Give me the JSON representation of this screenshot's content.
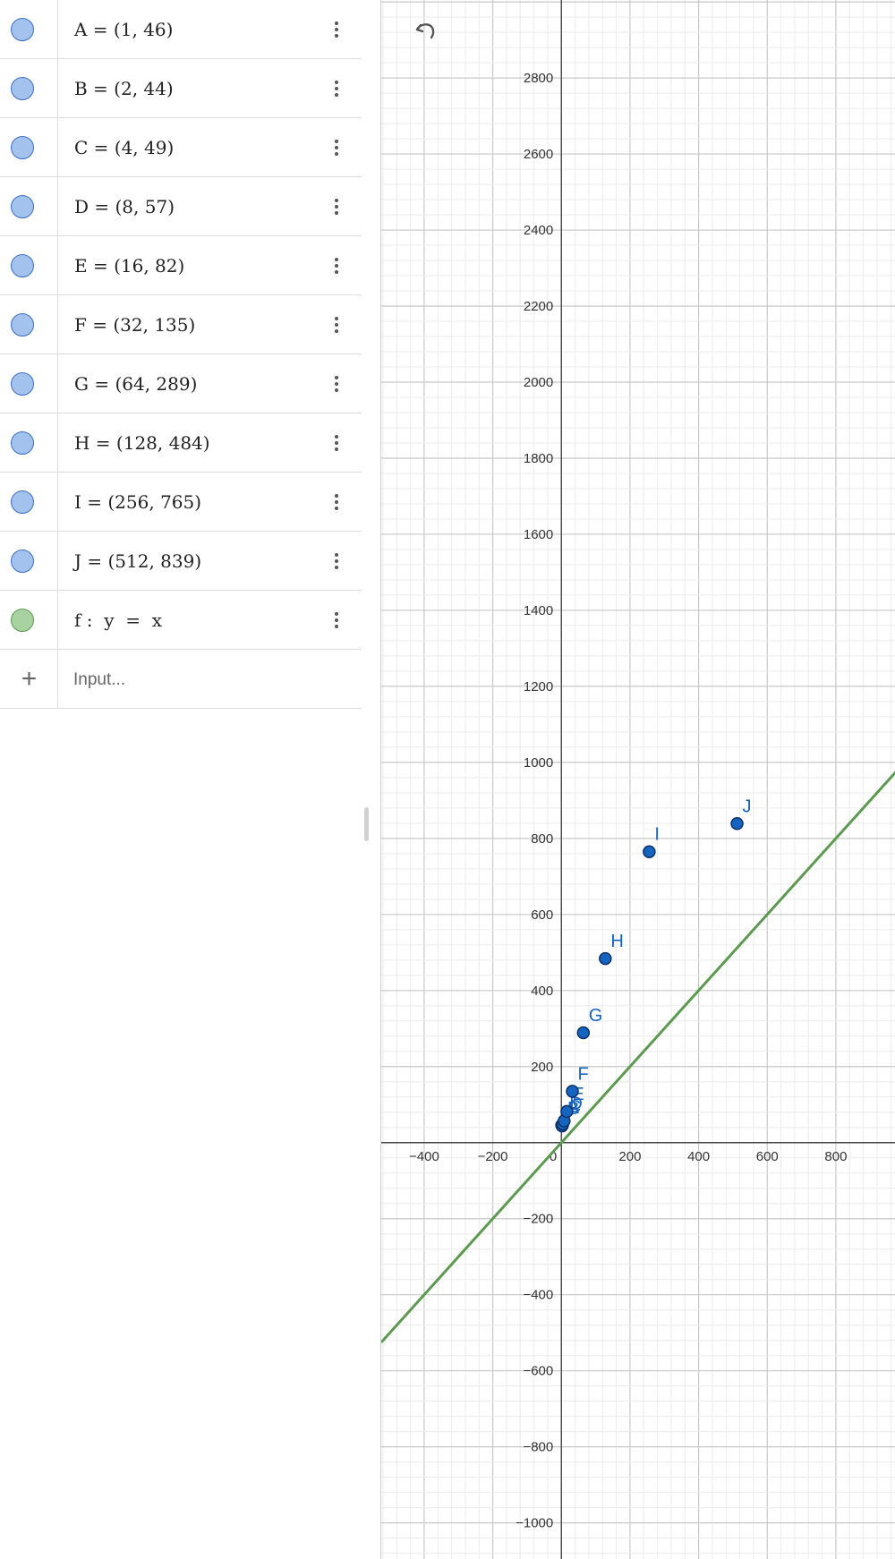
{
  "algebra_view": {
    "rows": [
      {
        "text": "A = (1, 46)",
        "type": "point",
        "color": "#a4c2ee"
      },
      {
        "text": "B = (2, 44)",
        "type": "point",
        "color": "#a4c2ee"
      },
      {
        "text": "C = (4, 49)",
        "type": "point",
        "color": "#a4c2ee"
      },
      {
        "text": "D = (8, 57)",
        "type": "point",
        "color": "#a4c2ee"
      },
      {
        "text": "E = (16, 82)",
        "type": "point",
        "color": "#a4c2ee"
      },
      {
        "text": "F = (32, 135)",
        "type": "point",
        "color": "#a4c2ee"
      },
      {
        "text": "G = (64, 289)",
        "type": "point",
        "color": "#a4c2ee"
      },
      {
        "text": "H = (128, 484)",
        "type": "point",
        "color": "#a4c2ee"
      },
      {
        "text": "I = (256, 765)",
        "type": "point",
        "color": "#a4c2ee"
      },
      {
        "text": "J = (512, 839)",
        "type": "point",
        "color": "#a4c2ee"
      },
      {
        "text": "f :  y  =  x",
        "type": "function",
        "color": "#a8d2a0"
      }
    ],
    "input_placeholder": "Input...",
    "add_icon": "plus-icon",
    "row_menu_icon": "more-vertical-icon"
  },
  "graphics_view": {
    "undo_icon": "undo-icon",
    "point_color": "#1565c0",
    "line_color": "#5b9a50",
    "chart_data": {
      "type": "scatter",
      "x_ticks": [
        "−400",
        "−200",
        "0",
        "200",
        "400",
        "600",
        "800"
      ],
      "y_ticks": [
        "2800",
        "2600",
        "2400",
        "2200",
        "2000",
        "1800",
        "1600",
        "1400",
        "1200",
        "1000",
        "800",
        "600",
        "400",
        "200",
        "−200",
        "−400",
        "−600",
        "−800",
        "−1000"
      ],
      "points": [
        {
          "name": "A",
          "x": 1,
          "y": 46
        },
        {
          "name": "B",
          "x": 2,
          "y": 44
        },
        {
          "name": "C",
          "x": 4,
          "y": 49
        },
        {
          "name": "D",
          "x": 8,
          "y": 57
        },
        {
          "name": "E",
          "x": 16,
          "y": 82
        },
        {
          "name": "F",
          "x": 32,
          "y": 135
        },
        {
          "name": "G",
          "x": 64,
          "y": 289
        },
        {
          "name": "H",
          "x": 128,
          "y": 484
        },
        {
          "name": "I",
          "x": 256,
          "y": 765
        },
        {
          "name": "J",
          "x": 512,
          "y": 839
        }
      ],
      "functions": [
        {
          "name": "f",
          "expression": "y = x",
          "slope": 1,
          "intercept": 0
        }
      ],
      "xlim": [
        -525,
        975
      ],
      "ylim": [
        -1095,
        3005
      ],
      "grid": true
    }
  }
}
